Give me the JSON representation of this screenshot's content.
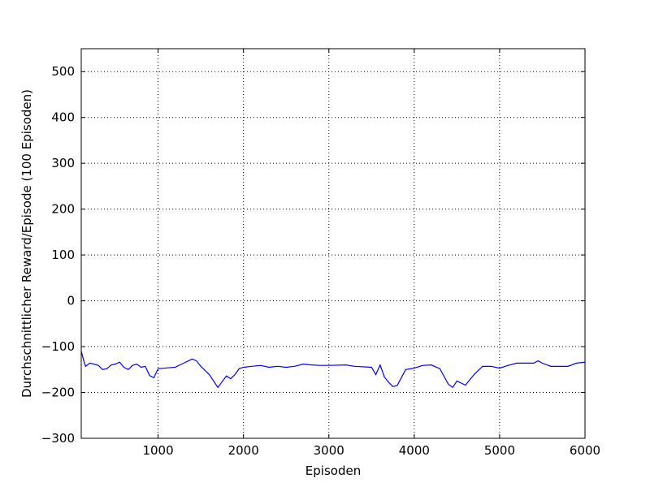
{
  "chart_data": {
    "type": "line",
    "xlabel": "Episoden",
    "ylabel": "Durchschnittlicher Reward/Episode (100 Episoden)",
    "x": [
      100,
      130,
      150,
      200,
      250,
      300,
      350,
      400,
      450,
      500,
      550,
      600,
      650,
      700,
      750,
      800,
      850,
      900,
      950,
      1000,
      1200,
      1300,
      1400,
      1450,
      1500,
      1600,
      1700,
      1800,
      1850,
      1900,
      1950,
      2000,
      2100,
      2200,
      2300,
      2400,
      2500,
      2600,
      2700,
      2800,
      2900,
      3000,
      3200,
      3300,
      3500,
      3550,
      3600,
      3650,
      3700,
      3750,
      3800,
      3900,
      4000,
      4100,
      4200,
      4300,
      4400,
      4450,
      4500,
      4600,
      4700,
      4800,
      4900,
      5000,
      5100,
      5200,
      5400,
      5450,
      5500,
      5600,
      5700,
      5800,
      5900,
      6000
    ],
    "series": [
      {
        "name": "Reward",
        "color": "#0000ff",
        "values": [
          -110,
          -131,
          -143,
          -136,
          -138,
          -141,
          -150,
          -148,
          -140,
          -138,
          -134,
          -145,
          -150,
          -141,
          -138,
          -145,
          -143,
          -163,
          -168,
          -148,
          -145,
          -136,
          -127,
          -131,
          -143,
          -161,
          -189,
          -164,
          -170,
          -161,
          -148,
          -145,
          -143,
          -141,
          -145,
          -143,
          -145,
          -143,
          -138,
          -140,
          -141,
          -141,
          -140,
          -143,
          -145,
          -161,
          -140,
          -166,
          -178,
          -187,
          -185,
          -150,
          -147,
          -141,
          -140,
          -148,
          -182,
          -189,
          -175,
          -184,
          -161,
          -143,
          -143,
          -147,
          -141,
          -136,
          -136,
          -131,
          -136,
          -143,
          -143,
          -143,
          -136,
          -134
        ]
      }
    ],
    "xlim": [
      100,
      6000
    ],
    "xticks": [
      1000,
      2000,
      3000,
      4000,
      5000,
      6000
    ],
    "ylim": [
      -300,
      550
    ],
    "yticks": [
      {
        "value": -300,
        "label": "−300"
      },
      {
        "value": -200,
        "label": "−200"
      },
      {
        "value": -100,
        "label": "−100"
      },
      0,
      100,
      200,
      300,
      400,
      500
    ],
    "grid": true
  }
}
